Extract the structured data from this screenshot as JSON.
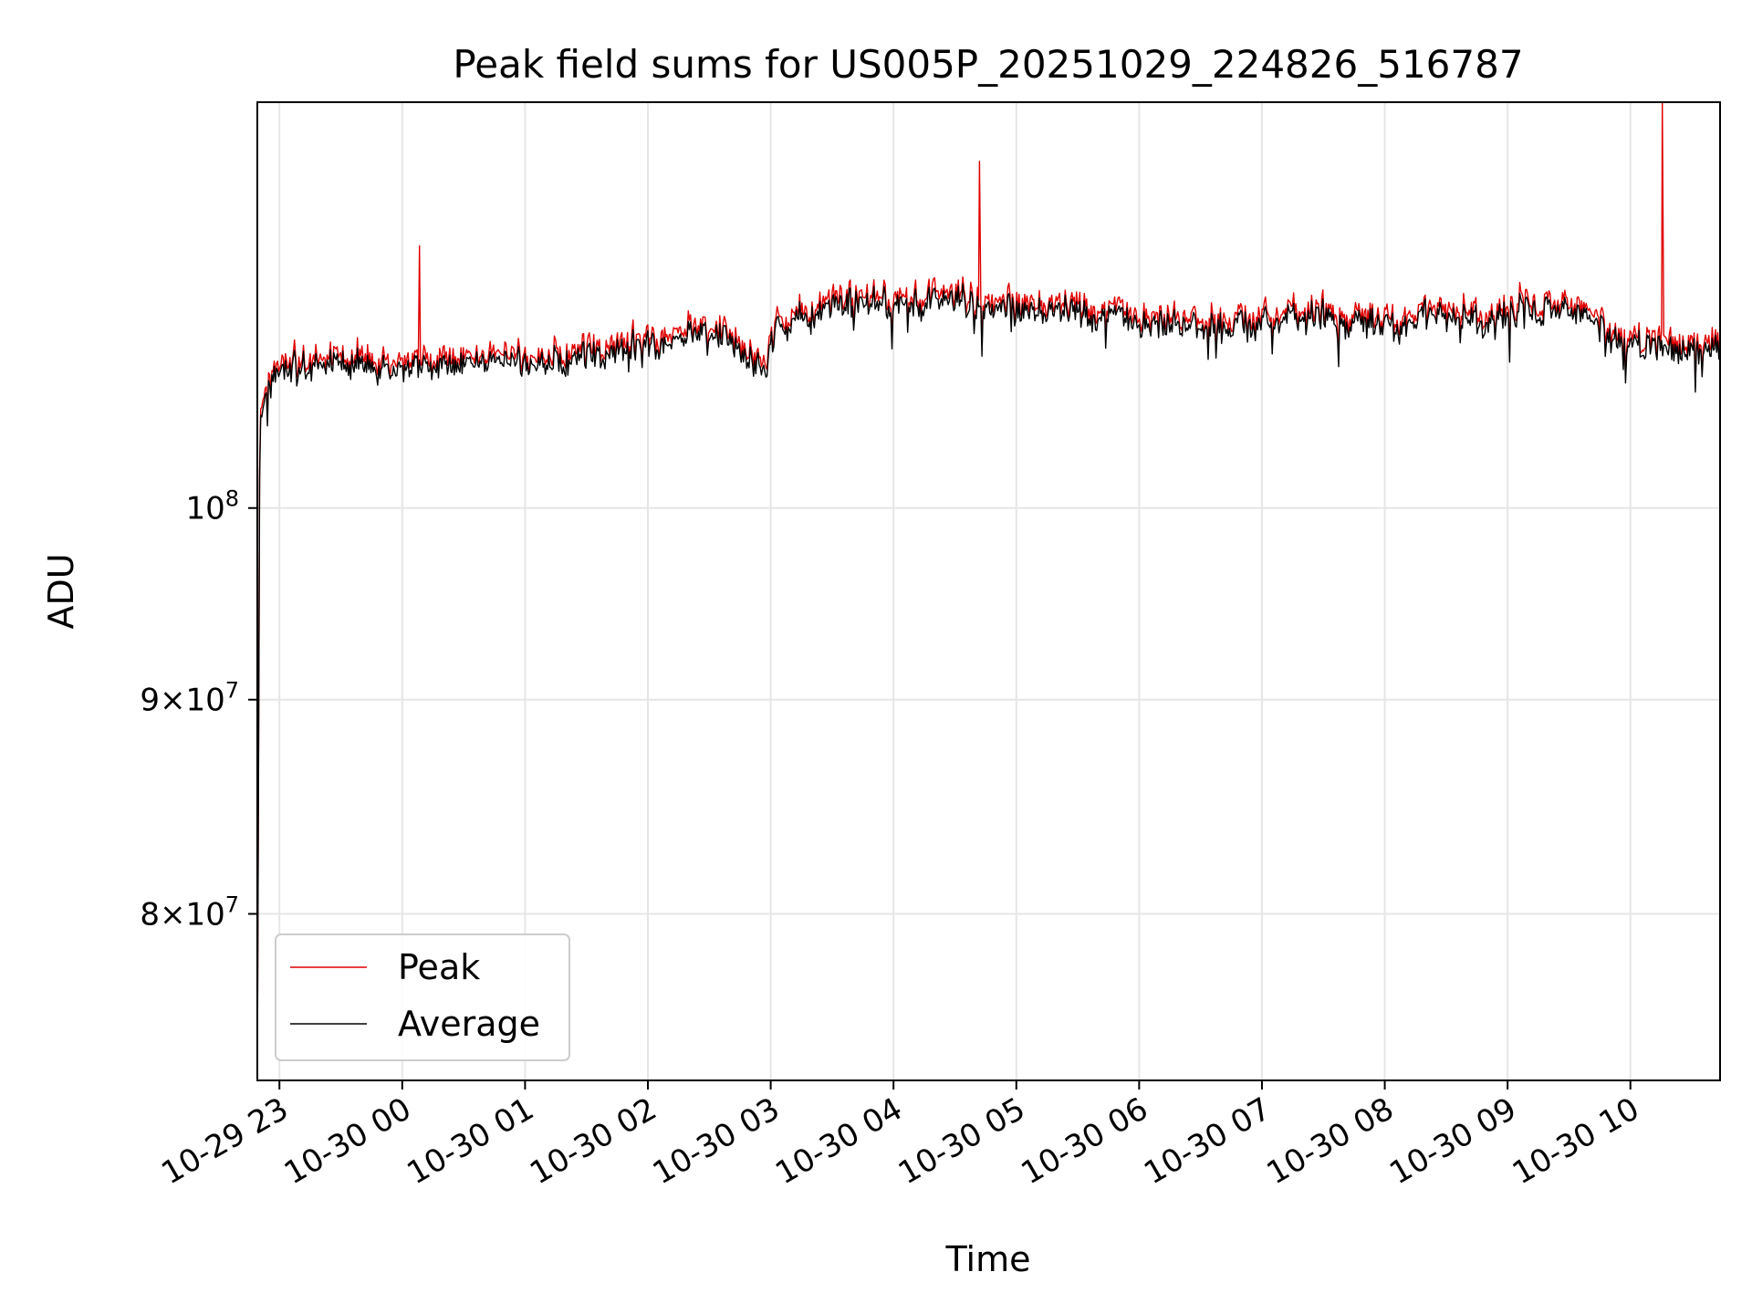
{
  "chart_data": {
    "type": "line",
    "title": "Peak field sums for US005P_20251029_224826_516787",
    "xlabel": "Time",
    "ylabel": "ADU",
    "yscale": "log",
    "ylim": [
      73000000,
      125000000
    ],
    "xlim_hours": [
      -1.18,
      10.73
    ],
    "grid": true,
    "legend_position": "lower-left",
    "x_ticks": [
      {
        "hour": -1,
        "label": "10-29 23"
      },
      {
        "hour": 0,
        "label": "10-30 00"
      },
      {
        "hour": 1,
        "label": "10-30 01"
      },
      {
        "hour": 2,
        "label": "10-30 02"
      },
      {
        "hour": 3,
        "label": "10-30 03"
      },
      {
        "hour": 4,
        "label": "10-30 04"
      },
      {
        "hour": 5,
        "label": "10-30 05"
      },
      {
        "hour": 6,
        "label": "10-30 06"
      },
      {
        "hour": 7,
        "label": "10-30 07"
      },
      {
        "hour": 8,
        "label": "10-30 08"
      },
      {
        "hour": 9,
        "label": "10-30 09"
      },
      {
        "hour": 10,
        "label": "10-30 10"
      }
    ],
    "y_ticks": [
      {
        "value": 80000000,
        "mantissa": "8",
        "exponent": "7",
        "kind": "minor"
      },
      {
        "value": 90000000,
        "mantissa": "9",
        "exponent": "7",
        "kind": "minor"
      },
      {
        "value": 100000000,
        "mantissa": "",
        "exponent": "8",
        "kind": "major"
      }
    ],
    "series": [
      {
        "name": "Peak",
        "color": "#e00000",
        "spikes": [
          {
            "hour": 0.14,
            "value": 115500000
          },
          {
            "hour": 4.7,
            "value": 121000000
          },
          {
            "hour": 10.26,
            "value": 125000000
          }
        ]
      },
      {
        "name": "Average",
        "color": "#000000"
      }
    ],
    "baseline": [
      [
        -1.18,
        95000000
      ],
      [
        -1.16,
        105000000
      ],
      [
        -1.1,
        107000000
      ],
      [
        -1.0,
        108000000
      ],
      [
        -0.85,
        108000000
      ],
      [
        -0.7,
        108500000
      ],
      [
        -0.5,
        108500000
      ],
      [
        -0.3,
        108000000
      ],
      [
        0.0,
        108000000
      ],
      [
        0.3,
        108000000
      ],
      [
        0.6,
        108400000
      ],
      [
        1.0,
        108300000
      ],
      [
        1.4,
        108600000
      ],
      [
        1.6,
        108800000
      ],
      [
        2.0,
        109600000
      ],
      [
        2.3,
        110000000
      ],
      [
        2.6,
        109800000
      ],
      [
        2.85,
        108500000
      ],
      [
        2.95,
        107500000
      ],
      [
        3.05,
        110500000
      ],
      [
        3.3,
        111000000
      ],
      [
        3.5,
        111800000
      ],
      [
        3.8,
        112100000
      ],
      [
        4.2,
        112000000
      ],
      [
        4.5,
        112200000
      ],
      [
        4.7,
        111800000
      ],
      [
        4.8,
        111400000
      ],
      [
        5.2,
        111300000
      ],
      [
        5.5,
        111500000
      ],
      [
        5.8,
        111300000
      ],
      [
        6.0,
        110500000
      ],
      [
        6.3,
        110300000
      ],
      [
        6.6,
        110400000
      ],
      [
        7.0,
        110700000
      ],
      [
        7.5,
        111100000
      ],
      [
        7.9,
        110500000
      ],
      [
        8.2,
        110600000
      ],
      [
        8.4,
        111100000
      ],
      [
        8.8,
        110700000
      ],
      [
        9.1,
        111400000
      ],
      [
        9.4,
        111600000
      ],
      [
        9.6,
        111500000
      ],
      [
        9.8,
        110100000
      ],
      [
        10.0,
        109300000
      ],
      [
        10.3,
        109100000
      ],
      [
        10.5,
        109300000
      ],
      [
        10.73,
        109200000
      ]
    ]
  }
}
